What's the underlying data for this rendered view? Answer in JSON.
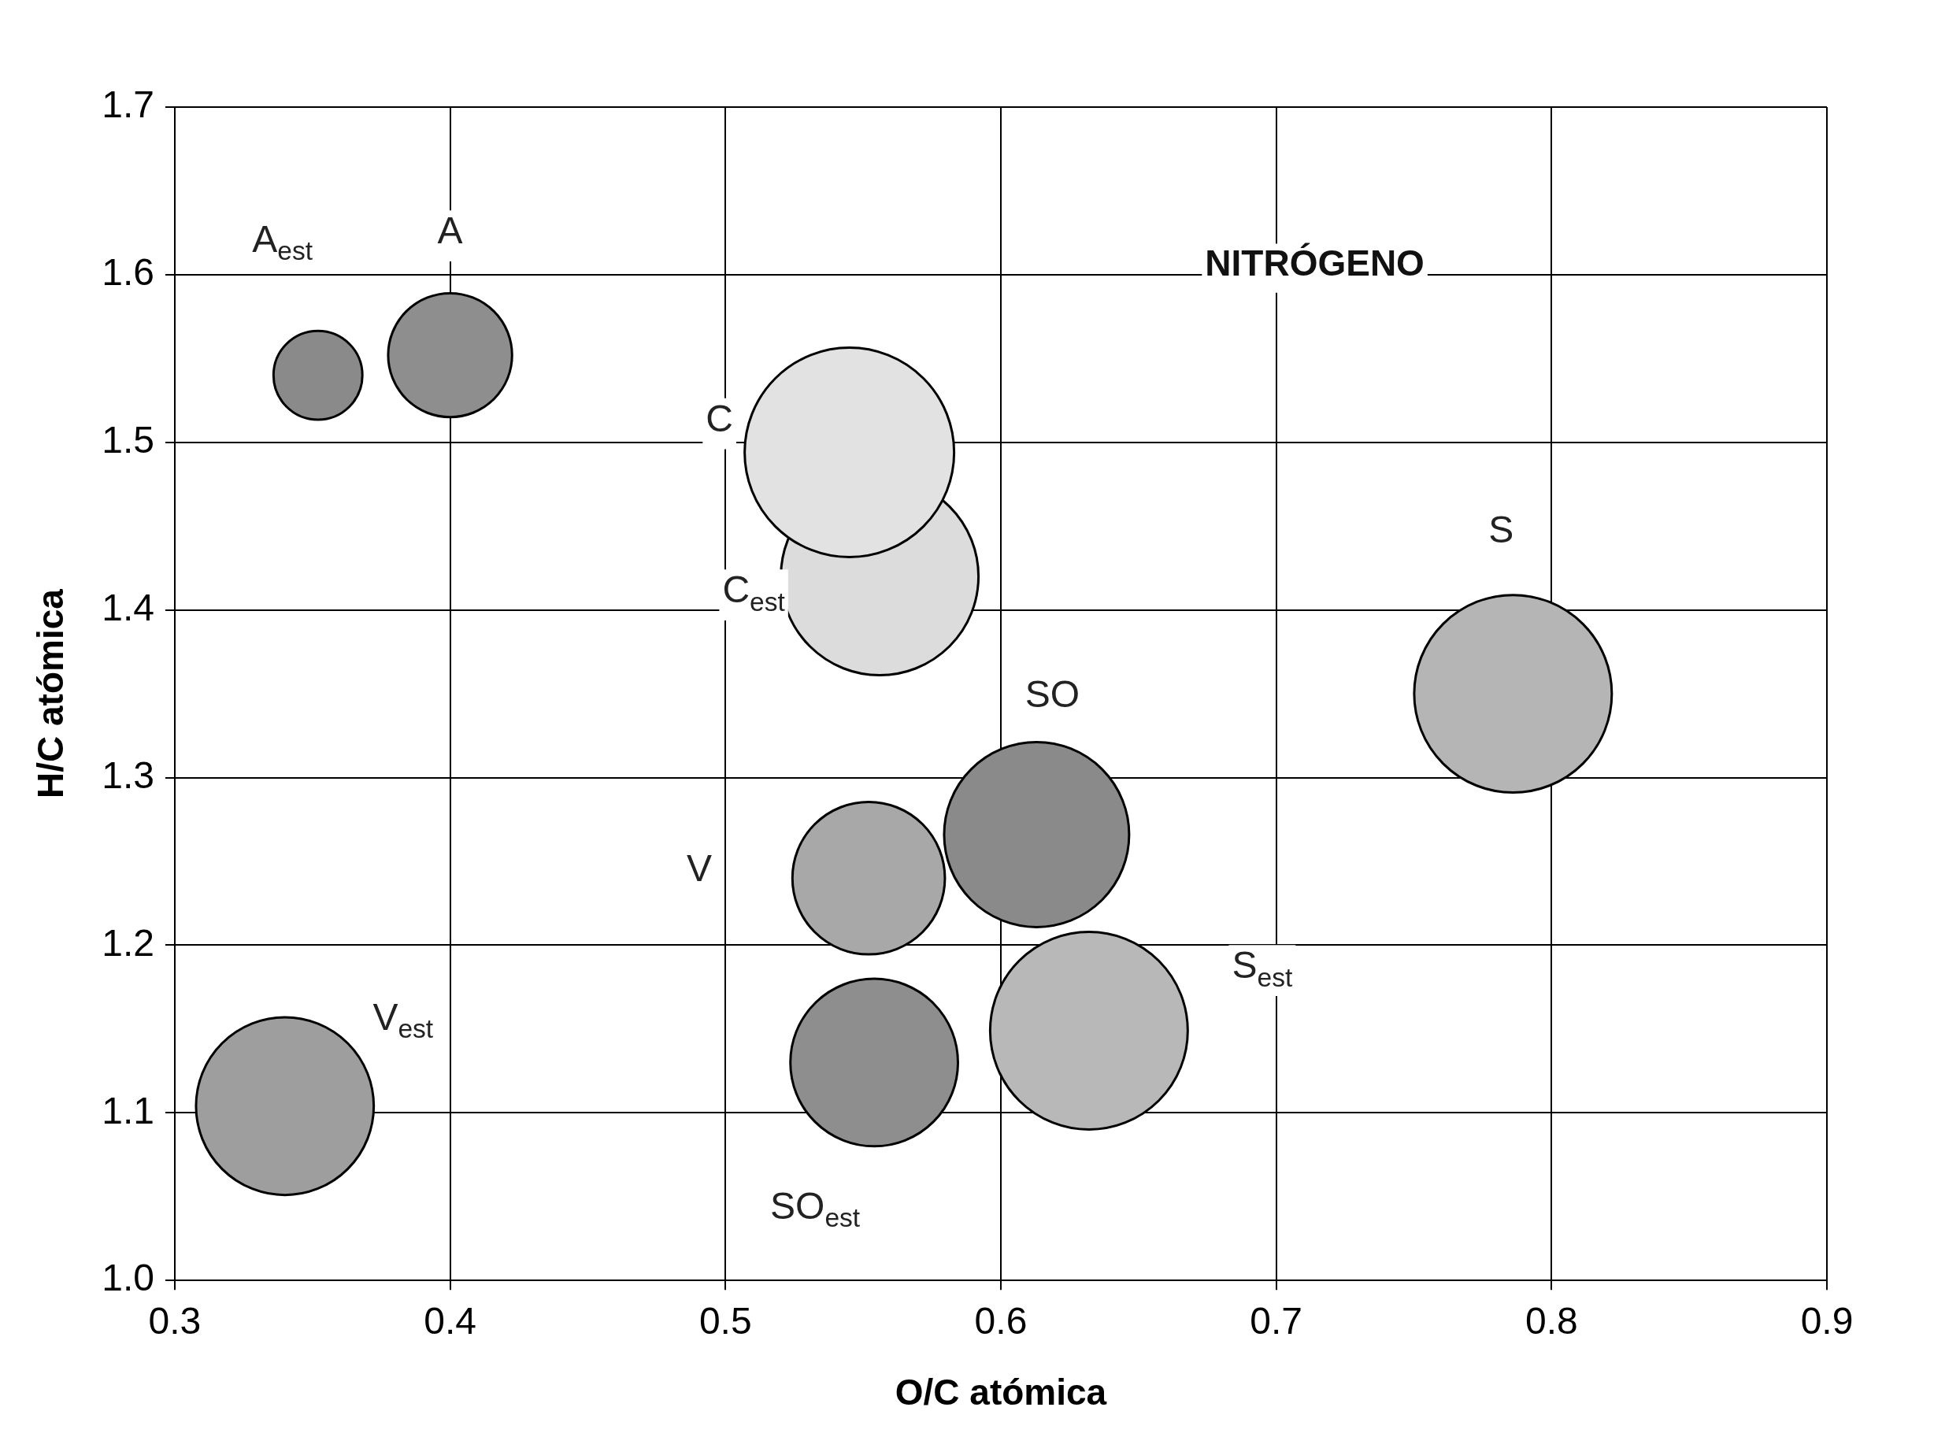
{
  "chart_data": {
    "type": "bubble",
    "xlabel": "O/C atómica",
    "ylabel": "H/C atómica",
    "annotations": [
      "NITRÓGENO"
    ],
    "xlim": [
      0.3,
      0.9
    ],
    "xticks": [
      0.3,
      0.4,
      0.5,
      0.6,
      0.7,
      0.8,
      0.9
    ],
    "ylim": [
      1.0,
      1.7
    ],
    "yticks": [
      {
        "value": 1,
        "label": "1.0"
      },
      1.1,
      1.2,
      1.3,
      1.4,
      1.5,
      1.6,
      1.7
    ],
    "grid": true,
    "legend": false,
    "series": [
      {
        "name": "A$_{est}$",
        "color": "#8a8a8a",
        "x": [
          0.352
        ],
        "values": [
          1.54
        ],
        "sizes": [
          0.18
        ]
      },
      {
        "name": "A",
        "color": "#8e8e8e",
        "x": [
          0.4
        ],
        "values": [
          1.552
        ],
        "sizes": [
          0.35
        ]
      },
      {
        "name": "C",
        "color": "#e2e2e2",
        "x": [
          0.545
        ],
        "values": [
          1.494
        ],
        "sizes": [
          1
        ]
      },
      {
        "name": "C$_{est}$",
        "color": "#dcdcdc",
        "x": [
          0.556
        ],
        "values": [
          1.42
        ],
        "sizes": [
          0.89
        ]
      },
      {
        "name": "S",
        "color": "#b5b5b5",
        "x": [
          0.786
        ],
        "values": [
          1.35
        ],
        "sizes": [
          0.89
        ]
      },
      {
        "name": "SO",
        "color": "#8a8a8a",
        "x": [
          0.613
        ],
        "values": [
          1.266
        ],
        "sizes": [
          0.78
        ]
      },
      {
        "name": "V",
        "color": "#a8a8a8",
        "x": [
          0.552
        ],
        "values": [
          1.24
        ],
        "sizes": [
          0.53
        ]
      },
      {
        "name": "V$_{est}$",
        "color": "#9e9e9e",
        "x": [
          0.34
        ],
        "values": [
          1.104
        ],
        "sizes": [
          0.72
        ]
      },
      {
        "name": "SO$_{est}$",
        "color": "#8e8e8e",
        "x": [
          0.554
        ],
        "values": [
          1.13
        ],
        "sizes": [
          0.64
        ]
      },
      {
        "name": "S$_{est}$",
        "color": "#b8b8b8",
        "x": [
          0.632
        ],
        "values": [
          1.149
        ],
        "sizes": [
          0.89
        ]
      }
    ]
  }
}
